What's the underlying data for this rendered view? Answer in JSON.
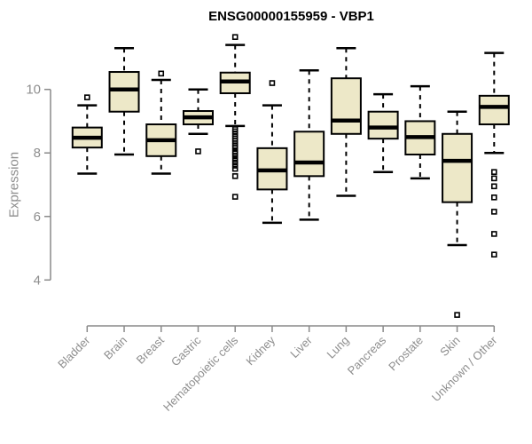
{
  "title": "ENSG00000155959 - VBP1",
  "chart_data": {
    "type": "boxplot",
    "title": "ENSG00000155959 - VBP1",
    "xlabel": "",
    "ylabel": "Expression",
    "grid": false,
    "legend": false,
    "yaxis": {
      "ticks": [
        4,
        6,
        8,
        10
      ],
      "shown_range": [
        4,
        10
      ]
    },
    "categories": [
      "Bladder",
      "Brain",
      "Breast",
      "Gastric",
      "Hematopoietic cells",
      "Kidney",
      "Liver",
      "Lung",
      "Pancreas",
      "Prostate",
      "Skin",
      "Unknown / Other"
    ],
    "boxes": [
      {
        "category": "Bladder",
        "whisker_low": 7.35,
        "q1": 8.17,
        "median": 8.48,
        "q3": 8.8,
        "whisker_high": 9.5,
        "outliers": [
          9.75
        ]
      },
      {
        "category": "Brain",
        "whisker_low": 7.95,
        "q1": 9.3,
        "median": 10.0,
        "q3": 10.55,
        "whisker_high": 11.3,
        "outliers": []
      },
      {
        "category": "Breast",
        "whisker_low": 7.35,
        "q1": 7.9,
        "median": 8.4,
        "q3": 8.9,
        "whisker_high": 10.3,
        "outliers": [
          10.5
        ]
      },
      {
        "category": "Gastric",
        "whisker_low": 8.6,
        "q1": 8.9,
        "median": 9.12,
        "q3": 9.32,
        "whisker_high": 10.0,
        "outliers": [
          8.05
        ]
      },
      {
        "category": "Hematopoietic cells",
        "whisker_low": 8.85,
        "q1": 9.88,
        "median": 10.25,
        "q3": 10.53,
        "whisker_high": 11.4,
        "outliers": [
          11.65,
          8.75,
          8.68,
          8.6,
          8.52,
          8.45,
          8.38,
          8.3,
          8.22,
          8.15,
          8.05,
          7.98,
          7.9,
          7.8,
          7.7,
          7.6,
          7.5,
          7.27,
          6.62
        ]
      },
      {
        "category": "Kidney",
        "whisker_low": 5.8,
        "q1": 6.85,
        "median": 7.45,
        "q3": 8.15,
        "whisker_high": 9.5,
        "outliers": [
          10.2
        ]
      },
      {
        "category": "Liver",
        "whisker_low": 5.9,
        "q1": 7.27,
        "median": 7.7,
        "q3": 8.67,
        "whisker_high": 10.6,
        "outliers": []
      },
      {
        "category": "Lung",
        "whisker_low": 6.65,
        "q1": 8.6,
        "median": 9.02,
        "q3": 10.35,
        "whisker_high": 11.3,
        "outliers": []
      },
      {
        "category": "Pancreas",
        "whisker_low": 7.4,
        "q1": 8.45,
        "median": 8.8,
        "q3": 9.3,
        "whisker_high": 9.85,
        "outliers": []
      },
      {
        "category": "Prostate",
        "whisker_low": 7.2,
        "q1": 7.95,
        "median": 8.5,
        "q3": 9.0,
        "whisker_high": 10.1,
        "outliers": []
      },
      {
        "category": "Skin",
        "whisker_low": 5.1,
        "q1": 6.45,
        "median": 7.75,
        "q3": 8.6,
        "whisker_high": 9.3,
        "outliers": [
          2.9
        ]
      },
      {
        "category": "Unknown / Other",
        "whisker_low": 8.0,
        "q1": 8.9,
        "median": 9.45,
        "q3": 9.8,
        "whisker_high": 11.15,
        "outliers": [
          7.4,
          7.2,
          6.95,
          6.6,
          6.15,
          5.45,
          4.8
        ]
      }
    ]
  },
  "colors": {
    "box_fill": "#ede8c8",
    "box_stroke": "#000000",
    "median": "#000000",
    "axis": "#8a8a8a",
    "tick_label": "#8e8e8e",
    "title": "#000000",
    "background": "#ffffff"
  }
}
